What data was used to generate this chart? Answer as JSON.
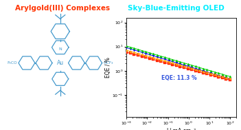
{
  "title_left": "Arylgold(III) Complexes",
  "title_right": "Sky-Blue-Emitting OLED",
  "title_left_color": "#FF3300",
  "title_right_color": "#00EEFF",
  "title_fontsize": 7.5,
  "xlabel": "J / mA cm⁻²",
  "ylabel": "EQE / %",
  "annotation": "EQE: 11.3 %",
  "annotation_color": "#3355DD",
  "xlim": [
    0.001,
    200.0
  ],
  "ylim": [
    0.012,
    150
  ],
  "mol_color": "#4499CC",
  "series": [
    {
      "color": "#0000EE",
      "marker": "v",
      "start_eqe": 9.0,
      "end_eqe": 0.38
    },
    {
      "color": "#00CC00",
      "marker": "^",
      "start_eqe": 10.5,
      "end_eqe": 0.48
    },
    {
      "color": "#FF2200",
      "marker": "s",
      "start_eqe": 5.8,
      "end_eqe": 0.35
    },
    {
      "color": "#FFAA00",
      "marker": "^",
      "start_eqe": 7.0,
      "end_eqe": 0.4
    }
  ]
}
